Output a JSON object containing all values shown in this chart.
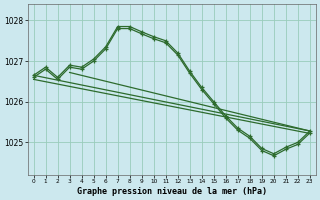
{
  "title": "Graphe pression niveau de la mer (hPa)",
  "bg_color": "#cce8ee",
  "grid_color": "#99ccbb",
  "line_color": "#2d6b2d",
  "xlim": [
    -0.5,
    23.5
  ],
  "ylim": [
    1024.2,
    1028.4
  ],
  "yticks": [
    1025,
    1026,
    1027,
    1028
  ],
  "xticks": [
    0,
    1,
    2,
    3,
    4,
    5,
    6,
    7,
    8,
    9,
    10,
    11,
    12,
    13,
    14,
    15,
    16,
    17,
    18,
    19,
    20,
    21,
    22,
    23
  ],
  "line1_x": [
    0,
    1,
    2,
    3,
    4,
    5,
    6,
    7,
    8,
    9,
    10,
    11,
    12,
    13,
    14,
    15,
    16,
    17,
    18,
    19,
    20,
    21,
    22,
    23
  ],
  "line1_y": [
    1026.65,
    1026.85,
    1026.6,
    1026.9,
    1026.85,
    1027.05,
    1027.35,
    1027.85,
    1027.85,
    1027.72,
    1027.6,
    1027.5,
    1027.2,
    1026.75,
    1026.35,
    1026.0,
    1025.65,
    1025.35,
    1025.15,
    1024.85,
    1024.72,
    1024.88,
    1025.0,
    1025.28
  ],
  "line2_x": [
    0,
    1,
    2,
    3,
    4,
    5,
    6,
    7,
    8,
    9,
    10,
    11,
    12,
    13,
    14,
    15,
    16,
    17,
    18,
    19,
    20,
    21,
    22,
    23
  ],
  "line2_y": [
    1026.65,
    1026.85,
    1026.6,
    1026.9,
    1026.85,
    1027.05,
    1027.35,
    1027.85,
    1027.85,
    1027.72,
    1027.6,
    1027.5,
    1027.2,
    1026.75,
    1026.35,
    1026.0,
    1025.65,
    1025.35,
    1025.15,
    1024.85,
    1024.72,
    1024.88,
    1025.0,
    1025.28
  ],
  "line3_x": [
    0,
    23
  ],
  "line3_y": [
    1026.65,
    1025.28
  ],
  "line4_x": [
    0,
    23
  ],
  "line4_y": [
    1026.55,
    1025.22
  ],
  "line5_x": [
    3,
    23
  ],
  "line5_y": [
    1026.72,
    1025.28
  ]
}
